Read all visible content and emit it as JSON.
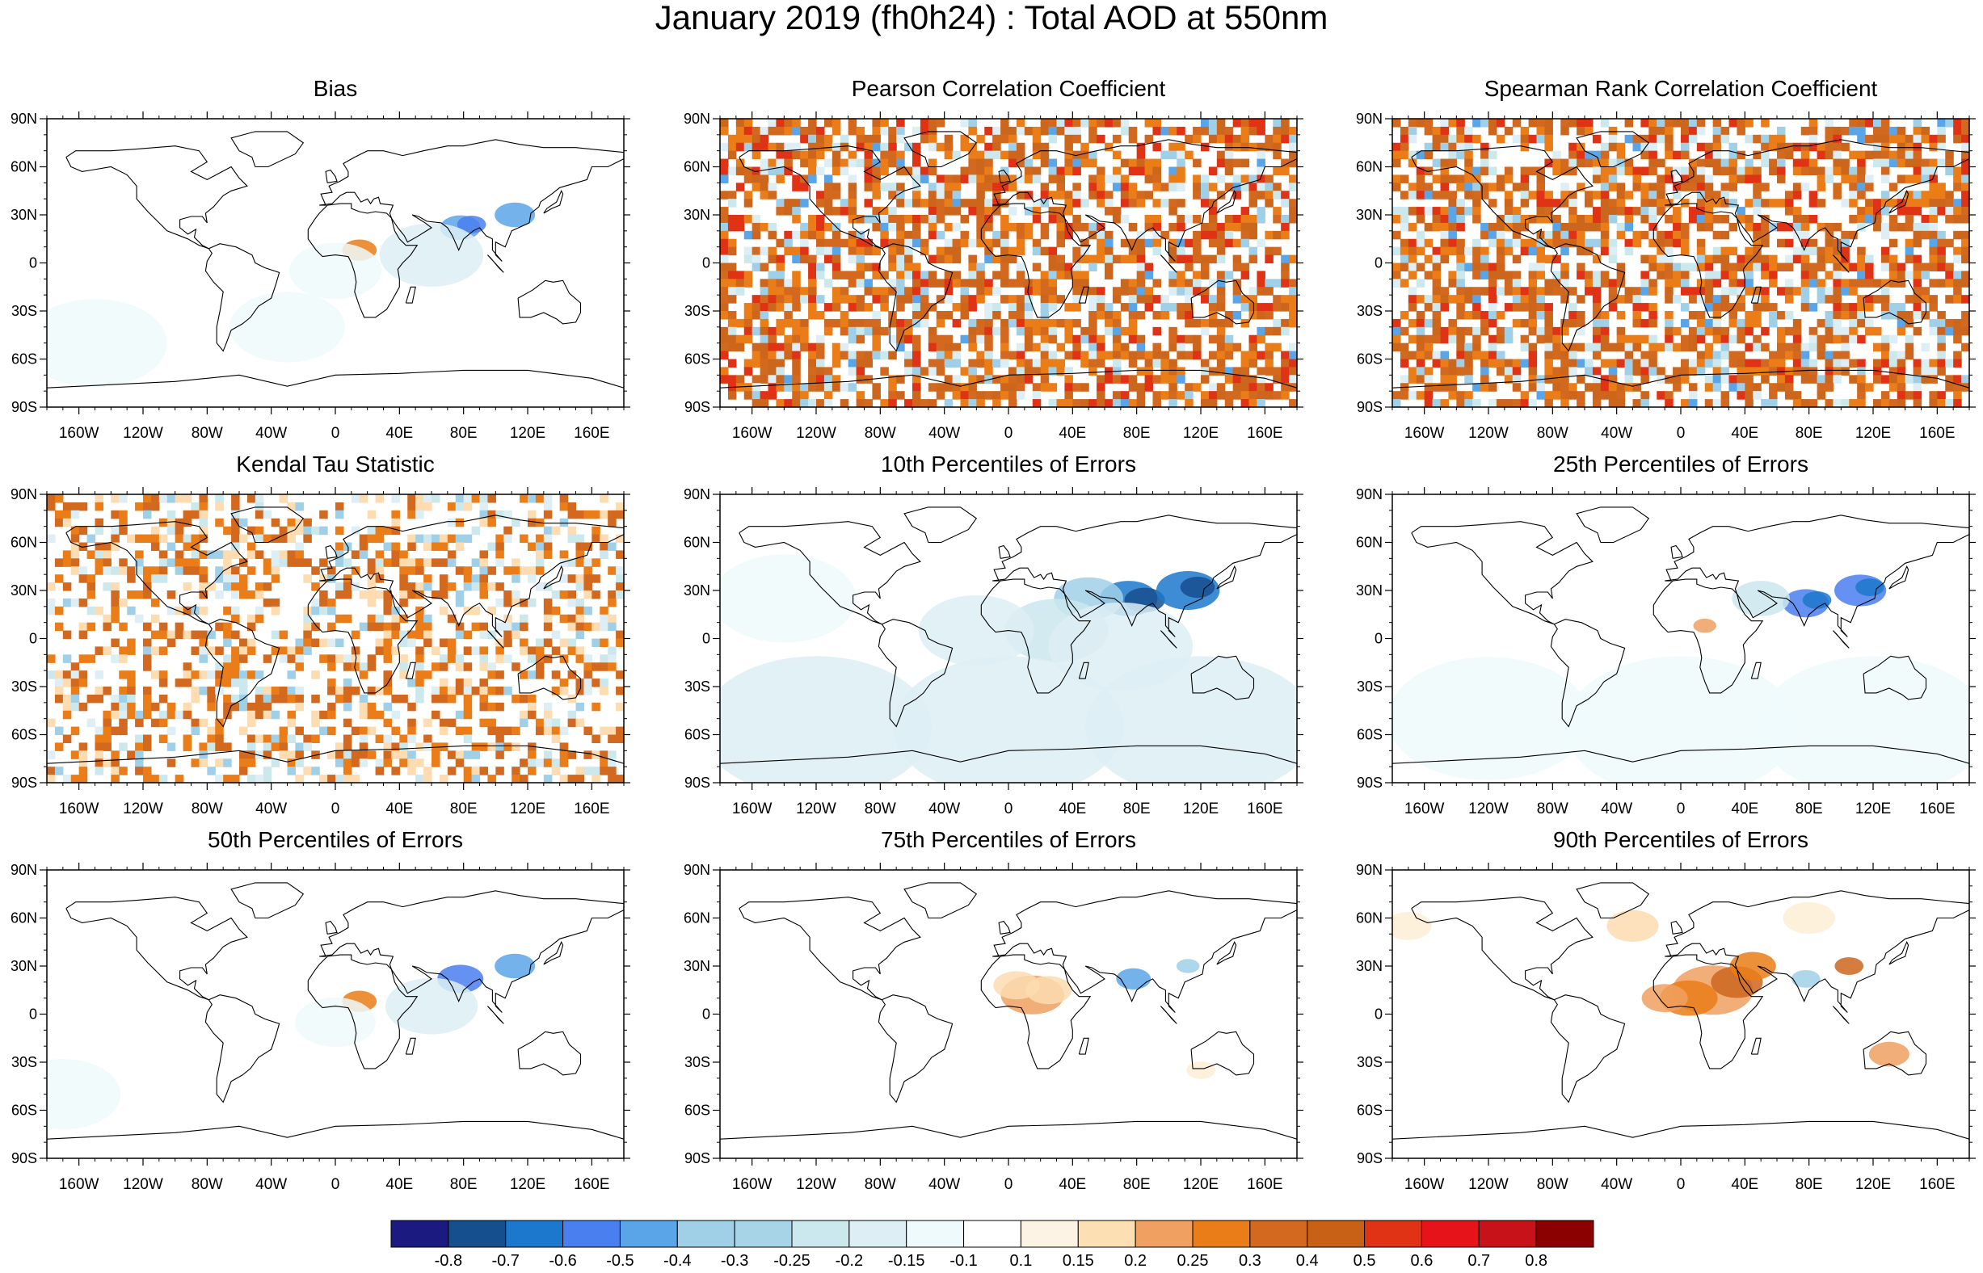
{
  "title": "January 2019 (fh0h24) : Total AOD at 550nm",
  "axes": {
    "lat_labels": [
      "90N",
      "60N",
      "30N",
      "0",
      "30S",
      "60S",
      "90S"
    ],
    "lon_labels": [
      "160W",
      "120W",
      "80W",
      "40W",
      "0",
      "40E",
      "80E",
      "120E",
      "160E"
    ]
  },
  "colors": {
    "land_outline": "#000000",
    "frame": "#000000",
    "blue_palette": [
      "#1a1a80",
      "#164f8e",
      "#1c78cd",
      "#4a7ff0",
      "#5aa5e8",
      "#a0d0e8",
      "#a8d4e8",
      "#cbe8ed",
      "#ddeef5",
      "#eefafc"
    ],
    "orange_palette": [
      "#fffaf0",
      "#fdeed6",
      "#fcdcb0",
      "#f0a060",
      "#ea7d18",
      "#cd661d",
      "#c86016",
      "#e03214",
      "#e6141a",
      "#c8121a",
      "#8b0000"
    ]
  },
  "panels": [
    {
      "id": "bias",
      "title": "Bias",
      "pattern": "bias"
    },
    {
      "id": "pearson",
      "title": "Pearson Correlation Coefficient",
      "pattern": "corr_strong"
    },
    {
      "id": "spearman",
      "title": "Spearman Rank Correlation Coefficient",
      "pattern": "corr_strong"
    },
    {
      "id": "kendall",
      "title": "Kendal Tau Statistic",
      "pattern": "corr_medium"
    },
    {
      "id": "p10",
      "title": "10th Percentiles of Errors",
      "pattern": "p10"
    },
    {
      "id": "p25",
      "title": "25th Percentiles of Errors",
      "pattern": "p25"
    },
    {
      "id": "p50",
      "title": "50th Percentiles of Errors",
      "pattern": "p50"
    },
    {
      "id": "p75",
      "title": "75th Percentiles of Errors",
      "pattern": "p75"
    },
    {
      "id": "p90",
      "title": "90th Percentiles of Errors",
      "pattern": "p90"
    }
  ],
  "colorbar": {
    "labels": [
      "-0.8",
      "-0.7",
      "-0.6",
      "-0.5",
      "-0.4",
      "-0.3",
      "-0.25",
      "-0.2",
      "-0.15",
      "-0.1",
      "0.1",
      "0.15",
      "0.2",
      "0.25",
      "0.3",
      "0.4",
      "0.5",
      "0.6",
      "0.7",
      "0.8"
    ],
    "colors": [
      "#1a1a80",
      "#164f8e",
      "#1c78cd",
      "#4a7ff0",
      "#5aa5e8",
      "#a0d0e8",
      "#a8d4e8",
      "#cbe8ed",
      "#ddeef5",
      "#eefafc",
      "#ffffff",
      "#fdf3e4",
      "#fce0b4",
      "#f0a060",
      "#ea7d18",
      "#d2691e",
      "#c86016",
      "#e03214",
      "#e6141a",
      "#c8121a",
      "#8b0000"
    ]
  }
}
